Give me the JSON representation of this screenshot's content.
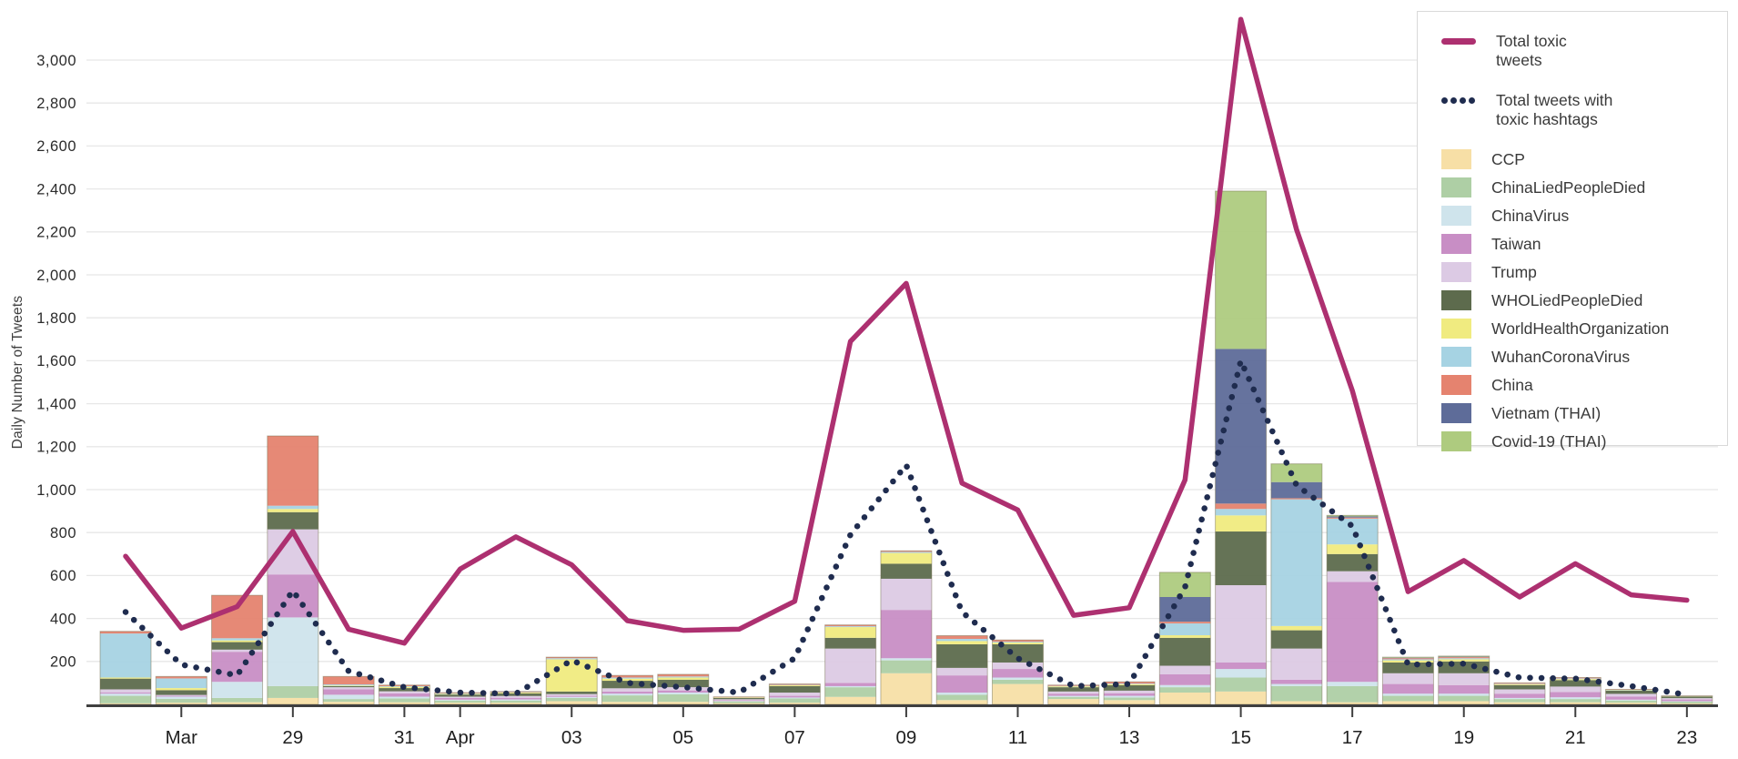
{
  "figure": {
    "y_axis_title": "Daily Number of Tweets"
  },
  "legend": {
    "line_items": [
      {
        "id": "total-toxic",
        "label": "Total toxic\ntweets",
        "style": "solid",
        "color": "#ad3070"
      },
      {
        "id": "toxic-hashtags",
        "label": "Total tweets with\ntoxic hashtags",
        "style": "dotted",
        "color": "#1f2c4f"
      }
    ],
    "swatch_items": [
      {
        "id": "ccp",
        "label": "CCP",
        "color": "#f7dfa6"
      },
      {
        "id": "chinaliedpeopledied",
        "label": "ChinaLiedPeopleDied",
        "color": "#aecfa5"
      },
      {
        "id": "chinavirus",
        "label": "ChinaVirus",
        "color": "#cfe4ec"
      },
      {
        "id": "taiwan",
        "label": "Taiwan",
        "color": "#c88ec5"
      },
      {
        "id": "trump",
        "label": "Trump",
        "color": "#dccae4"
      },
      {
        "id": "wholiedpeopledied",
        "label": "WHOLiedPeopleDied",
        "color": "#5d6b4d"
      },
      {
        "id": "worldhealthorganization",
        "label": "WorldHealthOrganization",
        "color": "#f0eb80"
      },
      {
        "id": "wuhancoronavirus",
        "label": "WuhanCoronaVirus",
        "color": "#a6d3e3"
      },
      {
        "id": "china",
        "label": "China",
        "color": "#e5836f"
      },
      {
        "id": "vietnam-thai",
        "label": "Vietnam (THAI)",
        "color": "#5e6c99"
      },
      {
        "id": "covid19-thai",
        "label": "Covid-19 (THAI)",
        "color": "#aecb7f"
      }
    ]
  },
  "chart_data": {
    "type": "bar",
    "subtype": "stacked-bars-with-overlaid-lines",
    "title": "",
    "xlabel": "",
    "ylabel": "Daily Number of Tweets",
    "ylim": [
      0,
      3200
    ],
    "yticks": [
      200,
      400,
      600,
      800,
      1000,
      1200,
      1400,
      1600,
      1800,
      2000,
      2200,
      2400,
      2600,
      2800,
      3000
    ],
    "grid": true,
    "legend_position": "top-right",
    "x": [
      "Mar 26",
      "Mar 27",
      "Mar 28",
      "Mar 29",
      "Mar 30",
      "Mar 31",
      "Apr 01",
      "Apr 02",
      "Apr 03",
      "Apr 04",
      "Apr 05",
      "Apr 06",
      "Apr 07",
      "Apr 08",
      "Apr 09",
      "Apr 10",
      "Apr 11",
      "Apr 12",
      "Apr 13",
      "Apr 14",
      "Apr 15",
      "Apr 16",
      "Apr 17",
      "Apr 18",
      "Apr 19",
      "Apr 20",
      "Apr 21",
      "Apr 22",
      "Apr 23"
    ],
    "x_tick_labels": [
      {
        "label": "Mar",
        "day_index": 1
      },
      {
        "label": "29",
        "day_index": 3
      },
      {
        "label": "31",
        "day_index": 5
      },
      {
        "label": "Apr",
        "day_index": 6
      },
      {
        "label": "03",
        "day_index": 8
      },
      {
        "label": "05",
        "day_index": 10
      },
      {
        "label": "07",
        "day_index": 12
      },
      {
        "label": "09",
        "day_index": 14
      },
      {
        "label": "11",
        "day_index": 16
      },
      {
        "label": "13",
        "day_index": 18
      },
      {
        "label": "15",
        "day_index": 20
      },
      {
        "label": "17",
        "day_index": 22
      },
      {
        "label": "19",
        "day_index": 24
      },
      {
        "label": "21",
        "day_index": 26
      },
      {
        "label": "23",
        "day_index": 28
      }
    ],
    "lines": [
      {
        "name": "Total toxic tweets",
        "style": "solid",
        "color": "#ad3070",
        "values": [
          690,
          355,
          455,
          805,
          350,
          285,
          630,
          780,
          650,
          390,
          345,
          350,
          480,
          1690,
          1960,
          1030,
          905,
          415,
          450,
          1045,
          3190,
          2210,
          1460,
          525,
          670,
          500,
          655,
          510,
          485
        ]
      },
      {
        "name": "Total tweets with toxic hashtags",
        "style": "dotted",
        "color": "#1f2c4f",
        "values": [
          430,
          185,
          135,
          530,
          155,
          80,
          55,
          50,
          205,
          100,
          80,
          55,
          215,
          790,
          1115,
          430,
          215,
          85,
          95,
          545,
          1600,
          1020,
          830,
          185,
          190,
          125,
          120,
          85,
          45
        ]
      }
    ],
    "stacked_series": [
      {
        "name": "CCP",
        "color": "#f7dfa6",
        "values": [
          5,
          8,
          10,
          30,
          12,
          10,
          8,
          8,
          15,
          12,
          12,
          6,
          8,
          35,
          145,
          20,
          95,
          25,
          20,
          55,
          60,
          15,
          10,
          15,
          15,
          10,
          10,
          8,
          5
        ]
      },
      {
        "name": "ChinaLiedPeopleDied",
        "color": "#aecfa5",
        "values": [
          35,
          18,
          20,
          55,
          13,
          18,
          10,
          10,
          15,
          30,
          35,
          8,
          20,
          45,
          60,
          25,
          20,
          10,
          12,
          25,
          65,
          70,
          75,
          25,
          25,
          15,
          15,
          10,
          8
        ]
      },
      {
        "name": "ChinaVirus",
        "color": "#cfe4ec",
        "values": [
          10,
          10,
          75,
          320,
          20,
          8,
          4,
          5,
          5,
          8,
          8,
          2,
          4,
          5,
          10,
          10,
          10,
          5,
          8,
          10,
          40,
          10,
          20,
          10,
          10,
          5,
          8,
          4,
          2
        ]
      },
      {
        "name": "Taiwan",
        "color": "#c88ec5",
        "values": [
          5,
          4,
          140,
          200,
          25,
          15,
          8,
          8,
          5,
          10,
          10,
          4,
          8,
          15,
          225,
          80,
          40,
          10,
          12,
          50,
          30,
          20,
          465,
          45,
          40,
          20,
          25,
          15,
          8
        ]
      },
      {
        "name": "Trump",
        "color": "#dccae4",
        "values": [
          15,
          4,
          10,
          210,
          10,
          10,
          6,
          8,
          8,
          15,
          15,
          4,
          15,
          160,
          145,
          35,
          30,
          10,
          12,
          40,
          360,
          145,
          50,
          50,
          55,
          20,
          25,
          12,
          6
        ]
      },
      {
        "name": "WHOLiedPeopleDied",
        "color": "#5d6b4d",
        "values": [
          50,
          22,
          35,
          80,
          5,
          15,
          10,
          12,
          12,
          35,
          35,
          6,
          30,
          50,
          70,
          110,
          85,
          20,
          25,
          130,
          250,
          85,
          80,
          50,
          55,
          20,
          30,
          15,
          8
        ]
      },
      {
        "name": "WorldHealthOrganization",
        "color": "#f0eb80",
        "values": [
          5,
          10,
          8,
          15,
          3,
          6,
          3,
          4,
          150,
          10,
          10,
          2,
          4,
          50,
          50,
          15,
          8,
          4,
          5,
          12,
          75,
          20,
          45,
          10,
          10,
          4,
          5,
          2,
          1
        ]
      },
      {
        "name": "WuhanCoronaVirus",
        "color": "#a6d3e3",
        "values": [
          205,
          45,
          10,
          15,
          5,
          3,
          3,
          2,
          5,
          5,
          5,
          1,
          2,
          4,
          5,
          10,
          4,
          2,
          3,
          55,
          30,
          590,
          120,
          5,
          5,
          2,
          3,
          2,
          1
        ]
      },
      {
        "name": "China",
        "color": "#e5836f",
        "values": [
          10,
          9,
          200,
          325,
          37,
          5,
          3,
          3,
          5,
          10,
          10,
          2,
          4,
          6,
          5,
          15,
          8,
          4,
          8,
          8,
          25,
          5,
          5,
          5,
          5,
          4,
          4,
          2,
          1
        ]
      },
      {
        "name": "Vietnam (THAI)",
        "color": "#5e6c99",
        "values": [
          0,
          0,
          0,
          0,
          0,
          0,
          0,
          0,
          0,
          0,
          0,
          0,
          0,
          0,
          0,
          0,
          0,
          0,
          0,
          115,
          720,
          75,
          5,
          2,
          2,
          0,
          0,
          0,
          0
        ]
      },
      {
        "name": "Covid-19 (THAI)",
        "color": "#aecb7f",
        "values": [
          0,
          0,
          0,
          0,
          0,
          0,
          0,
          0,
          0,
          0,
          0,
          0,
          0,
          0,
          0,
          0,
          0,
          0,
          0,
          115,
          735,
          85,
          5,
          3,
          3,
          0,
          0,
          0,
          0
        ]
      }
    ]
  }
}
